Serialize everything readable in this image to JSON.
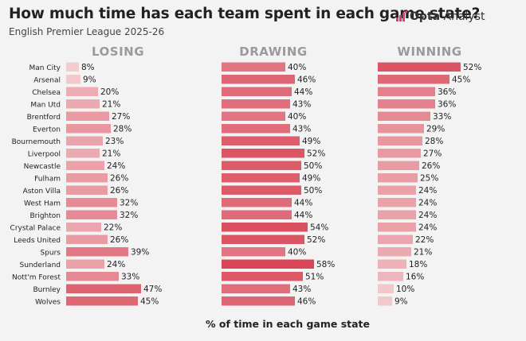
{
  "header": {
    "title": "How much time has each team spent in each game state?",
    "subtitle": "English Premier League 2025-26",
    "brand_bold": "Opta",
    "brand_rest": " Analyst"
  },
  "colors": {
    "background": "#f4f3f3",
    "bar_light": "#f2cccf",
    "bar_dark": "#d84556",
    "brand_pink": "#d63e6e"
  },
  "chart_data": {
    "type": "bar",
    "orientation": "horizontal",
    "xlabel": "% of time in each game state",
    "categories": [
      "Man City",
      "Arsenal",
      "Chelsea",
      "Man Utd",
      "Brentford",
      "Everton",
      "Bournemouth",
      "Liverpool",
      "Newcastle",
      "Fulham",
      "Aston Villa",
      "West Ham",
      "Brighton",
      "Crystal Palace",
      "Leeds United",
      "Spurs",
      "Sunderland",
      "Nott'm Forest",
      "Burnley",
      "Wolves"
    ],
    "series": [
      {
        "name": "LOSING",
        "values": [
          8,
          9,
          20,
          21,
          27,
          28,
          23,
          21,
          24,
          26,
          26,
          32,
          32,
          22,
          26,
          39,
          24,
          33,
          47,
          45
        ]
      },
      {
        "name": "DRAWING",
        "values": [
          40,
          46,
          44,
          43,
          40,
          43,
          49,
          52,
          50,
          49,
          50,
          44,
          44,
          54,
          52,
          40,
          58,
          51,
          43,
          46
        ]
      },
      {
        "name": "WINNING",
        "values": [
          52,
          45,
          36,
          36,
          33,
          29,
          28,
          27,
          26,
          25,
          24,
          24,
          24,
          24,
          22,
          21,
          18,
          16,
          10,
          9
        ]
      }
    ],
    "value_suffix": "%"
  }
}
